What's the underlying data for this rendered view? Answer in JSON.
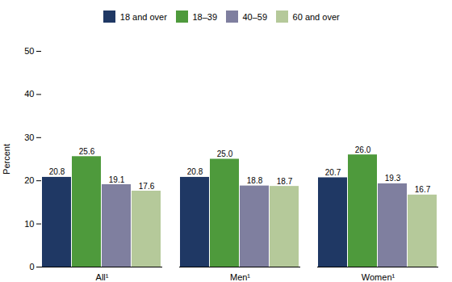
{
  "chart_data": {
    "type": "bar",
    "categories": [
      "All¹",
      "Men¹",
      "Women¹"
    ],
    "series": [
      {
        "name": "18 and over",
        "color": "#1f3864",
        "values": [
          20.8,
          20.8,
          20.7
        ],
        "value_labels": [
          "20.8",
          "20.8",
          "20.7"
        ]
      },
      {
        "name": "18–39",
        "color": "#4e9a3c",
        "values": [
          25.6,
          25.0,
          26.0
        ],
        "value_labels": [
          "25.6",
          "25.0",
          "26.0"
        ]
      },
      {
        "name": "40–59",
        "color": "#7f7f9f",
        "values": [
          19.1,
          18.8,
          19.3
        ],
        "value_labels": [
          "19.1",
          "18.8",
          "19.3"
        ]
      },
      {
        "name": "60 and over",
        "color": "#b5c99a",
        "values": [
          17.6,
          18.7,
          16.7
        ],
        "value_labels": [
          "17.6",
          "18.7",
          "16.7"
        ]
      }
    ],
    "ylabel": "Percent",
    "ylim": [
      0,
      50
    ],
    "yticks": [
      0,
      10,
      20,
      30,
      40,
      50
    ],
    "grid": false,
    "legend": "top",
    "data_labels": true
  }
}
